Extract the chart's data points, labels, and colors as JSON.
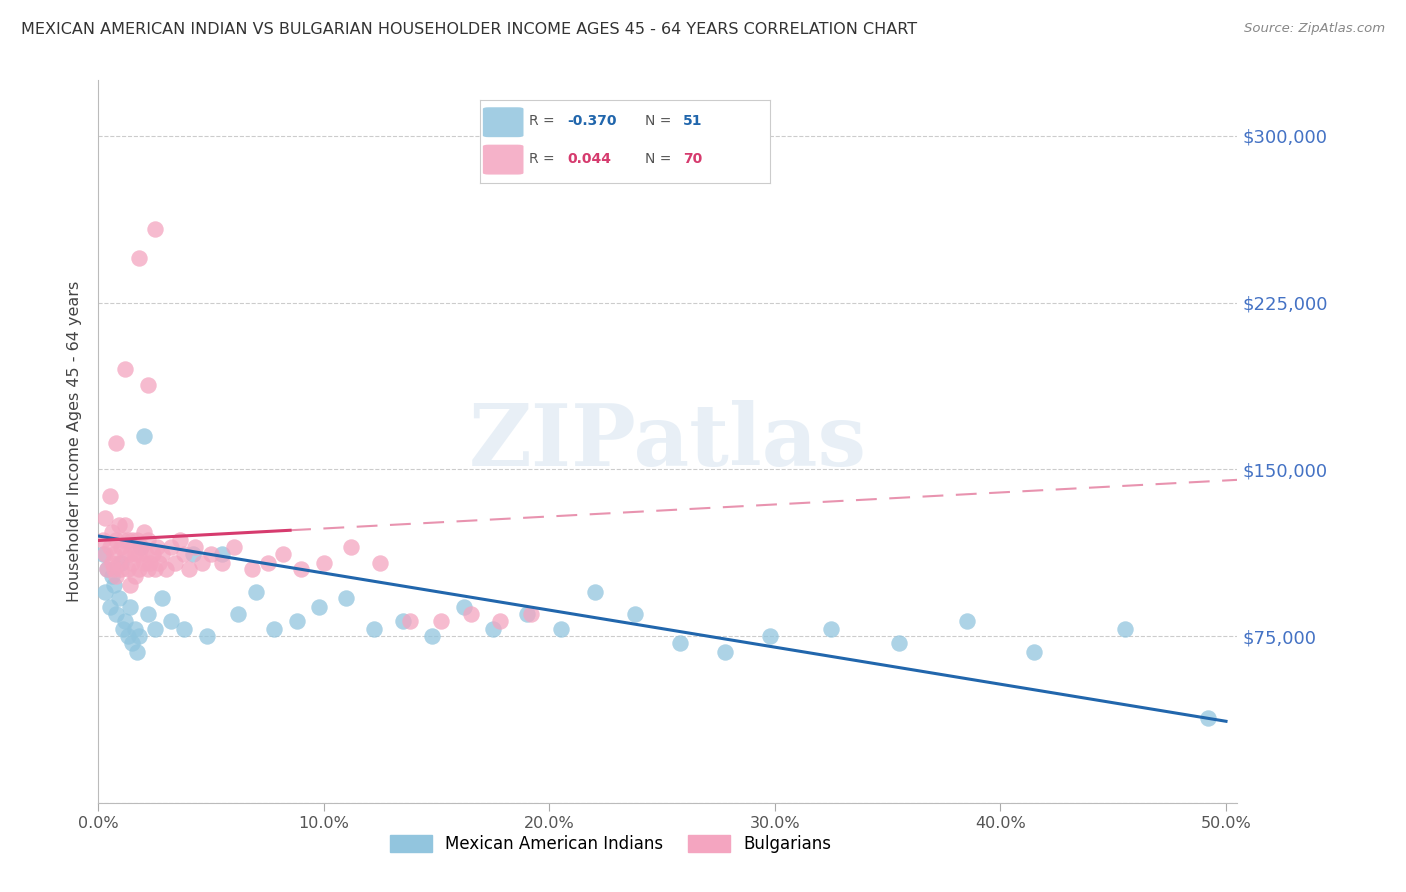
{
  "title": "MEXICAN AMERICAN INDIAN VS BULGARIAN HOUSEHOLDER INCOME AGES 45 - 64 YEARS CORRELATION CHART",
  "source": "Source: ZipAtlas.com",
  "ylabel": "Householder Income Ages 45 - 64 years",
  "xlim": [
    0.0,
    0.505
  ],
  "ylim": [
    0,
    325000
  ],
  "ytick_vals": [
    0,
    75000,
    150000,
    225000,
    300000
  ],
  "ytick_labels_right": [
    "",
    "$75,000",
    "$150,000",
    "$225,000",
    "$300,000"
  ],
  "xtick_vals": [
    0.0,
    0.1,
    0.2,
    0.3,
    0.4,
    0.5
  ],
  "xtick_labels": [
    "0.0%",
    "10.0%",
    "20.0%",
    "30.0%",
    "40.0%",
    "50.0%"
  ],
  "legend_labels": [
    "Mexican American Indians",
    "Bulgarians"
  ],
  "blue_color": "#92c5de",
  "pink_color": "#f4a5c0",
  "blue_line_color": "#2166ac",
  "pink_line_solid_color": "#d63b6e",
  "watermark_text": "ZIPatlas",
  "legend_R_blue": "-0.370",
  "legend_N_blue": "51",
  "legend_R_pink": "0.044",
  "legend_N_pink": "70",
  "blue_x": [
    0.002,
    0.003,
    0.004,
    0.005,
    0.006,
    0.007,
    0.008,
    0.009,
    0.01,
    0.011,
    0.012,
    0.013,
    0.014,
    0.015,
    0.016,
    0.017,
    0.018,
    0.019,
    0.02,
    0.022,
    0.025,
    0.028,
    0.032,
    0.038,
    0.042,
    0.048,
    0.055,
    0.062,
    0.07,
    0.078,
    0.088,
    0.098,
    0.11,
    0.122,
    0.135,
    0.148,
    0.162,
    0.175,
    0.19,
    0.205,
    0.22,
    0.238,
    0.258,
    0.278,
    0.298,
    0.325,
    0.355,
    0.385,
    0.415,
    0.455,
    0.492
  ],
  "blue_y": [
    112000,
    95000,
    105000,
    88000,
    102000,
    98000,
    85000,
    92000,
    108000,
    78000,
    82000,
    75000,
    88000,
    72000,
    78000,
    68000,
    75000,
    115000,
    165000,
    85000,
    78000,
    92000,
    82000,
    78000,
    112000,
    75000,
    112000,
    85000,
    95000,
    78000,
    82000,
    88000,
    92000,
    78000,
    82000,
    75000,
    88000,
    78000,
    85000,
    78000,
    95000,
    85000,
    72000,
    68000,
    75000,
    78000,
    72000,
    82000,
    68000,
    78000,
    38000
  ],
  "pink_x": [
    0.002,
    0.003,
    0.003,
    0.004,
    0.005,
    0.005,
    0.006,
    0.006,
    0.007,
    0.007,
    0.008,
    0.008,
    0.009,
    0.009,
    0.01,
    0.01,
    0.011,
    0.012,
    0.012,
    0.013,
    0.013,
    0.014,
    0.014,
    0.015,
    0.015,
    0.016,
    0.016,
    0.017,
    0.018,
    0.018,
    0.019,
    0.02,
    0.02,
    0.021,
    0.022,
    0.022,
    0.023,
    0.024,
    0.025,
    0.026,
    0.027,
    0.028,
    0.03,
    0.032,
    0.034,
    0.036,
    0.038,
    0.04,
    0.043,
    0.046,
    0.05,
    0.055,
    0.06,
    0.068,
    0.075,
    0.082,
    0.09,
    0.1,
    0.112,
    0.125,
    0.138,
    0.152,
    0.165,
    0.178,
    0.192,
    0.025,
    0.018,
    0.012,
    0.008,
    0.022
  ],
  "pink_y": [
    118000,
    112000,
    128000,
    105000,
    115000,
    138000,
    108000,
    122000,
    112000,
    105000,
    118000,
    102000,
    125000,
    108000,
    115000,
    105000,
    118000,
    112000,
    125000,
    118000,
    105000,
    112000,
    98000,
    118000,
    108000,
    112000,
    102000,
    118000,
    112000,
    105000,
    115000,
    108000,
    122000,
    112000,
    105000,
    118000,
    108000,
    112000,
    105000,
    115000,
    108000,
    112000,
    105000,
    115000,
    108000,
    118000,
    112000,
    105000,
    115000,
    108000,
    112000,
    108000,
    115000,
    105000,
    108000,
    112000,
    105000,
    108000,
    115000,
    108000,
    82000,
    82000,
    85000,
    82000,
    85000,
    258000,
    245000,
    195000,
    162000,
    188000
  ]
}
